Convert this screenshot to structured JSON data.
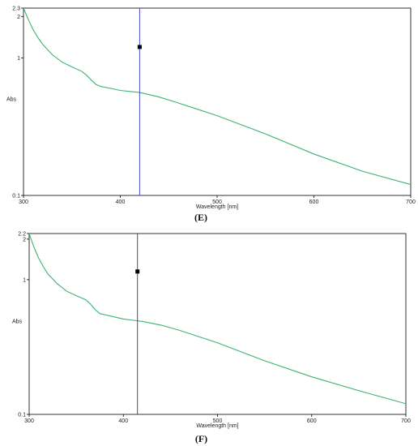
{
  "chart_data": [
    {
      "type": "line",
      "panel_label": "(E)",
      "xlabel": "Wavelength [nm]",
      "ylabel": "Abs",
      "xlim": [
        300,
        700
      ],
      "ylim": [
        0.1,
        2.3
      ],
      "y_scale": "log",
      "x_ticks": [
        300,
        400,
        500,
        600,
        700
      ],
      "x_tick_labels": [
        "300",
        "400",
        "500",
        "600",
        "700"
      ],
      "y_ticks": [
        0.1,
        1,
        2,
        2.3
      ],
      "y_tick_labels": [
        "0.1",
        "1",
        "2",
        "2.3"
      ],
      "grid": false,
      "colors": {
        "curve": "#3cb371",
        "cursor": "#4a4ad0",
        "axis": "#000000"
      },
      "series": [
        {
          "x": [
            300,
            305,
            310,
            315,
            320,
            330,
            340,
            350,
            360,
            365,
            370,
            375,
            380,
            390,
            400,
            410,
            420,
            440,
            460,
            500,
            550,
            600,
            650,
            700
          ],
          "y": [
            2.3,
            1.9,
            1.6,
            1.4,
            1.25,
            1.05,
            0.93,
            0.86,
            0.8,
            0.75,
            0.69,
            0.64,
            0.62,
            0.6,
            0.58,
            0.57,
            0.56,
            0.52,
            0.47,
            0.38,
            0.28,
            0.2,
            0.15,
            0.12
          ]
        }
      ],
      "cursor": {
        "x": 420
      },
      "marker": {
        "x": 420,
        "y": 1.2
      }
    },
    {
      "type": "line",
      "panel_label": "(F)",
      "xlabel": "Wavelength [nm]",
      "ylabel": "Abs",
      "xlim": [
        300,
        700
      ],
      "ylim": [
        0.1,
        2.2
      ],
      "y_scale": "log",
      "x_ticks": [
        300,
        400,
        500,
        600,
        700
      ],
      "x_tick_labels": [
        "300",
        "400",
        "500",
        "600",
        "700"
      ],
      "y_ticks": [
        0.1,
        1,
        2,
        2.2
      ],
      "y_tick_labels": [
        "0.1",
        "1",
        "2",
        "2.2"
      ],
      "grid": false,
      "colors": {
        "curve": "#3cb371",
        "cursor": "#4a4a7a",
        "axis": "#000000"
      },
      "series": [
        {
          "x": [
            300,
            305,
            310,
            315,
            320,
            330,
            340,
            350,
            360,
            365,
            370,
            375,
            380,
            390,
            400,
            410,
            420,
            440,
            460,
            500,
            550,
            600,
            650,
            700
          ],
          "y": [
            2.2,
            1.75,
            1.45,
            1.25,
            1.1,
            0.93,
            0.82,
            0.76,
            0.71,
            0.66,
            0.6,
            0.56,
            0.55,
            0.53,
            0.51,
            0.5,
            0.49,
            0.46,
            0.42,
            0.34,
            0.25,
            0.19,
            0.15,
            0.12
          ]
        }
      ],
      "cursor": {
        "x": 415
      },
      "marker": {
        "x": 415,
        "y": 1.15
      }
    }
  ]
}
